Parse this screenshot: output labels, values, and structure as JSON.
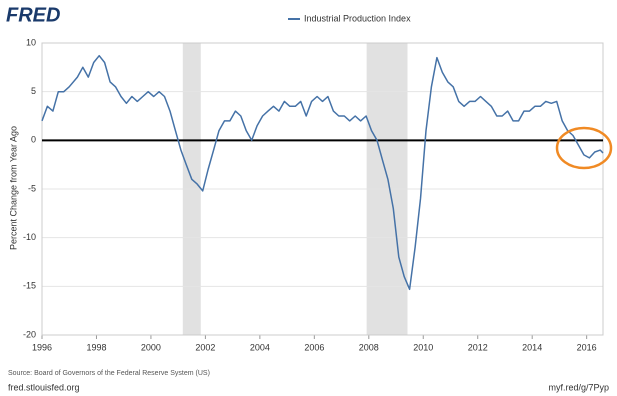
{
  "chart_data": {
    "type": "line",
    "logo": "FRED",
    "y_label": "Percent Change from Year Ago",
    "source": "Source: Board of Governors of the Federal Reserve System (US)",
    "footer_left": "fred.stlouisfed.org",
    "footer_right": "myf.red/g/7Pyp",
    "grid": true,
    "zero_line": true,
    "xlim": [
      1996,
      2016.6
    ],
    "xticks": [
      1996,
      1998,
      2000,
      2002,
      2004,
      2006,
      2008,
      2010,
      2012,
      2014,
      2016
    ],
    "ylim": [
      -20,
      10
    ],
    "yticks": [
      -20,
      -15,
      -10,
      -5,
      0,
      5,
      10
    ],
    "recession_color": "#e1e1e1",
    "recessions": [
      {
        "start": 2001.17,
        "end": 2001.83
      },
      {
        "start": 2007.92,
        "end": 2009.42
      }
    ],
    "x": [
      1996.0,
      1996.2,
      1996.4,
      1996.6,
      1996.8,
      1997.0,
      1997.3,
      1997.5,
      1997.7,
      1997.9,
      1998.1,
      1998.3,
      1998.5,
      1998.7,
      1998.9,
      1999.1,
      1999.3,
      1999.5,
      1999.7,
      1999.9,
      2000.1,
      2000.3,
      2000.5,
      2000.7,
      2000.9,
      2001.1,
      2001.3,
      2001.5,
      2001.7,
      2001.9,
      2002.1,
      2002.3,
      2002.5,
      2002.7,
      2002.9,
      2003.1,
      2003.3,
      2003.5,
      2003.7,
      2003.9,
      2004.1,
      2004.3,
      2004.5,
      2004.7,
      2004.9,
      2005.1,
      2005.3,
      2005.5,
      2005.7,
      2005.9,
      2006.1,
      2006.3,
      2006.5,
      2006.7,
      2006.9,
      2007.1,
      2007.3,
      2007.5,
      2007.7,
      2007.9,
      2008.1,
      2008.3,
      2008.5,
      2008.7,
      2008.9,
      2009.1,
      2009.3,
      2009.5,
      2009.7,
      2009.9,
      2010.1,
      2010.3,
      2010.5,
      2010.7,
      2010.9,
      2011.1,
      2011.3,
      2011.5,
      2011.7,
      2011.9,
      2012.1,
      2012.3,
      2012.5,
      2012.7,
      2012.9,
      2013.1,
      2013.3,
      2013.5,
      2013.7,
      2013.9,
      2014.1,
      2014.3,
      2014.5,
      2014.7,
      2014.9,
      2015.1,
      2015.3,
      2015.5,
      2015.7,
      2015.9,
      2016.1,
      2016.3,
      2016.5,
      2016.6
    ],
    "series": [
      {
        "name": "Industrial Production Index",
        "color": "#4572a7",
        "values": [
          2,
          3.5,
          3,
          5,
          5,
          5.5,
          6.5,
          7.5,
          6.5,
          8,
          8.7,
          8,
          6,
          5.5,
          4.5,
          3.8,
          4.5,
          4,
          4.5,
          5,
          4.5,
          5,
          4.5,
          3,
          1,
          -1,
          -2.5,
          -4,
          -4.5,
          -5.2,
          -3,
          -1,
          1,
          2,
          2,
          3,
          2.5,
          1,
          0,
          1.5,
          2.5,
          3,
          3.5,
          3,
          4,
          3.5,
          3.5,
          4,
          2.5,
          4,
          4.5,
          4,
          4.5,
          3,
          2.5,
          2.5,
          2,
          2.5,
          2,
          2.5,
          1,
          0,
          -2,
          -4,
          -7,
          -12,
          -14,
          -15.3,
          -11,
          -6,
          1,
          5.5,
          8.5,
          7,
          6,
          5.5,
          4,
          3.5,
          4,
          4,
          4.5,
          4,
          3.5,
          2.5,
          2.5,
          3,
          2,
          2,
          3,
          3,
          3.5,
          3.5,
          4,
          3.8,
          4,
          2,
          1,
          0.5,
          -0.5,
          -1.5,
          -1.8,
          -1.2,
          -1,
          -1.3
        ]
      }
    ]
  }
}
